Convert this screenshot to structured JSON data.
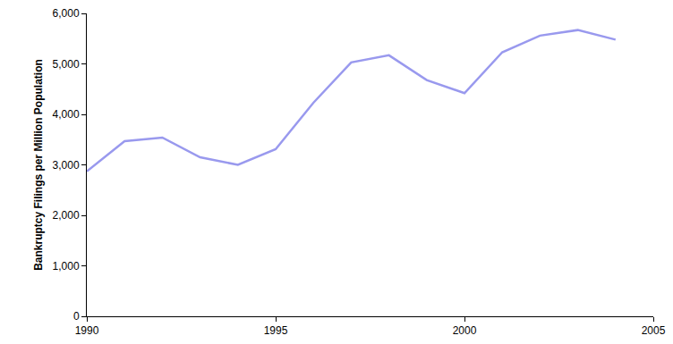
{
  "chart_data": {
    "type": "line",
    "y_label": "Bankruptcy Filings per Million Population",
    "x": [
      1990,
      1991,
      1992,
      1993,
      1994,
      1995,
      1996,
      1997,
      1998,
      1999,
      2000,
      2001,
      2002,
      2003,
      2004
    ],
    "values": [
      2870,
      3470,
      3540,
      3150,
      3000,
      3310,
      4230,
      5030,
      5170,
      4680,
      4420,
      5230,
      5560,
      5670,
      5480
    ],
    "color": "#9999ee",
    "xlim": [
      1990,
      2005
    ],
    "xticks": [
      1990,
      1995,
      2000,
      2005
    ],
    "ylim": [
      0,
      6000
    ],
    "yticks": [
      0,
      {
        "value": 1000,
        "label": "1,000"
      },
      {
        "value": 2000,
        "label": "2,000"
      },
      {
        "value": 3000,
        "label": "3,000"
      },
      {
        "value": 4000,
        "label": "4,000"
      },
      {
        "value": 5000,
        "label": "5,000"
      },
      {
        "value": 6000,
        "label": "6,000"
      }
    ],
    "grid": false
  }
}
